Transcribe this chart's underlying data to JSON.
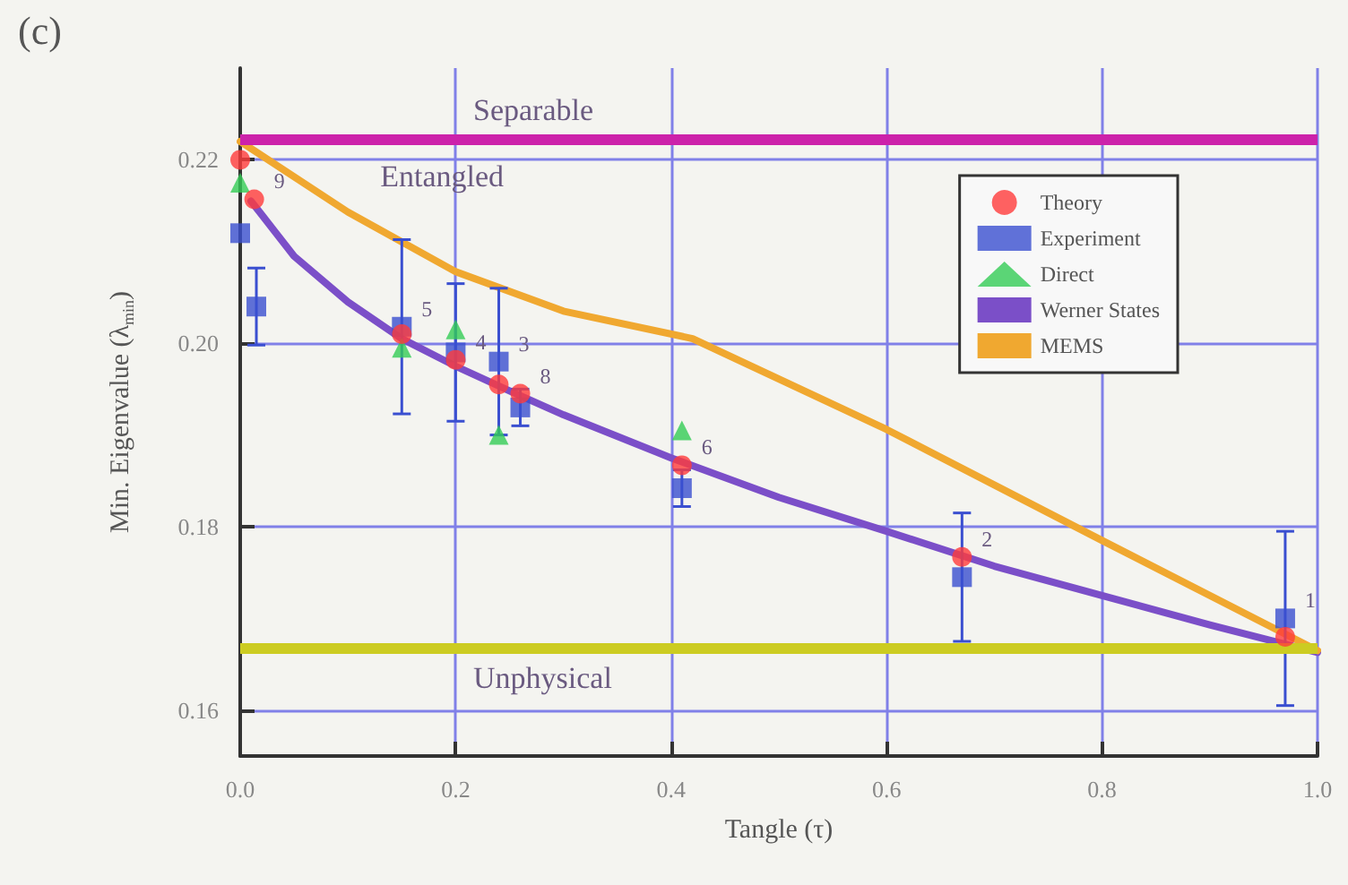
{
  "chart_data": {
    "type": "scatter",
    "xlabel": "Tangle (τ)",
    "ylabel": "Min. Eigenvalue (λ$_{min}$)",
    "xlim": [
      0,
      1
    ],
    "ylim": [
      0.155,
      0.23
    ],
    "xticks": [
      {
        "value": 0,
        "label": "0.0"
      },
      0.2,
      0.4,
      0.6,
      0.8,
      {
        "value": 1,
        "label": "1.0"
      }
    ],
    "yticks": [
      0.16,
      0.18,
      {
        "value": 0.2,
        "label": "0.20"
      },
      0.22
    ],
    "grid": true,
    "legend": "top right",
    "series": [
      {
        "name": "Theory",
        "marker": "circle",
        "color": "#ff3b3b",
        "x": [
          0,
          0.013,
          0.15,
          0.2,
          0.24,
          0.26,
          0.41,
          0.67,
          0.97
        ],
        "values": [
          0.22,
          0.2157,
          0.201,
          0.1982,
          0.1955,
          0.1945,
          0.1867,
          0.1767,
          0.168
        ]
      },
      {
        "name": "Experiment",
        "marker": "square",
        "color": "#3a4fd0",
        "x": [
          0,
          0.015,
          0.15,
          0.2,
          0.24,
          0.26,
          0.41,
          0.67,
          0.97
        ],
        "values": [
          0.212,
          0.204,
          0.2018,
          0.199,
          0.198,
          0.193,
          0.1842,
          0.1745,
          0.17
        ],
        "errors": [
          null,
          0.0042,
          0.0095,
          0.0075,
          0.008,
          0.002,
          0.002,
          0.007,
          0.0095
        ]
      },
      {
        "name": "Direct",
        "marker": "triangle",
        "color": "#33cc55",
        "x": [
          0,
          0.15,
          0.2,
          0.24,
          0.41
        ],
        "values": [
          0.2175,
          0.1995,
          0.2015,
          0.19,
          0.1905
        ]
      },
      {
        "name": "Werner States",
        "type": "line",
        "marker": "none",
        "color": "#7b4fc8",
        "x": [
          0.01,
          0.02,
          0.05,
          0.1,
          0.15,
          0.2,
          0.25,
          0.3,
          0.4,
          0.5,
          0.6,
          0.7,
          0.8,
          0.9,
          1.0
        ],
        "values": [
          0.2155,
          0.214,
          0.2095,
          0.2045,
          0.2005,
          0.1975,
          0.1948,
          0.1922,
          0.1875,
          0.1832,
          0.1795,
          0.1757,
          0.1725,
          0.1693,
          0.1663
        ]
      },
      {
        "name": "MEMS",
        "type": "line",
        "marker": "none",
        "color": "#f0a830",
        "x": [
          0,
          0.1,
          0.2,
          0.3,
          0.42,
          0.6,
          0.8,
          1.0
        ],
        "values": [
          0.222,
          0.2143,
          0.2078,
          0.2035,
          0.2005,
          0.1906,
          0.1785,
          0.1665
        ]
      }
    ],
    "ref_lines": [
      {
        "axis": "y",
        "value": 0.2222,
        "label": "Separable",
        "color": "#cc22aa"
      },
      {
        "axis": "y",
        "value": 0.1667,
        "label": "Unphysical",
        "color": "#cccc22"
      }
    ],
    "annotations": [
      "(c)",
      "Entangled",
      {
        "text": "9",
        "x": 0.013,
        "y": 0.2157
      },
      {
        "text": "5",
        "x": 0.15,
        "y": 0.2018
      },
      {
        "text": "4",
        "x": 0.2,
        "y": 0.1982
      },
      {
        "text": "3",
        "x": 0.24,
        "y": 0.198
      },
      {
        "text": "8",
        "x": 0.26,
        "y": 0.1945
      },
      {
        "text": "6",
        "x": 0.41,
        "y": 0.1867
      },
      {
        "text": "2",
        "x": 0.67,
        "y": 0.1767
      },
      {
        "text": "1",
        "x": 0.97,
        "y": 0.17
      }
    ]
  }
}
